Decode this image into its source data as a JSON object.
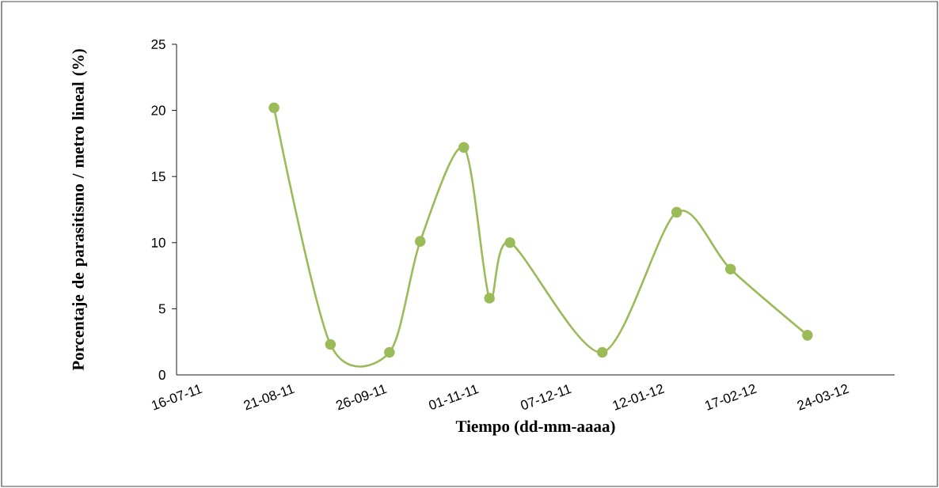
{
  "chart_data": {
    "type": "line",
    "xlabel": "Tiempo (dd-mm-aaaa)",
    "ylabel": "Porcentaje de parasitismo / metro lineal (%)",
    "x": [
      "2011-08-23",
      "2011-09-14",
      "2011-10-07",
      "2011-10-19",
      "2011-11-05",
      "2011-11-15",
      "2011-11-23",
      "2011-12-29",
      "2012-01-27",
      "2012-02-17",
      "2012-03-18"
    ],
    "series": [
      {
        "color": "#9bbb59",
        "values": [
          20.2,
          2.3,
          1.7,
          10.1,
          17.2,
          5.8,
          10.0,
          1.7,
          12.3,
          8.0,
          3.0
        ]
      }
    ],
    "xlim": [
      "2011-07-16",
      "2012-04-21"
    ],
    "xticks": [
      {
        "value": "2011-07-16",
        "label": "16-07-11"
      },
      {
        "value": "2011-08-21",
        "label": "21-08-11"
      },
      {
        "value": "2011-09-26",
        "label": "26-09-11"
      },
      {
        "value": "2011-11-01",
        "label": "01-11-11"
      },
      {
        "value": "2011-12-07",
        "label": "07-12-11"
      },
      {
        "value": "2012-01-12",
        "label": "12-01-12"
      },
      {
        "value": "2012-02-17",
        "label": "17-02-12"
      },
      {
        "value": "2012-03-24",
        "label": "24-03-12"
      }
    ],
    "ylim": [
      0,
      25
    ],
    "yticks": [
      0,
      5,
      10,
      15,
      20,
      25
    ],
    "marker": "circle",
    "line_style": "solid",
    "grid": false
  }
}
